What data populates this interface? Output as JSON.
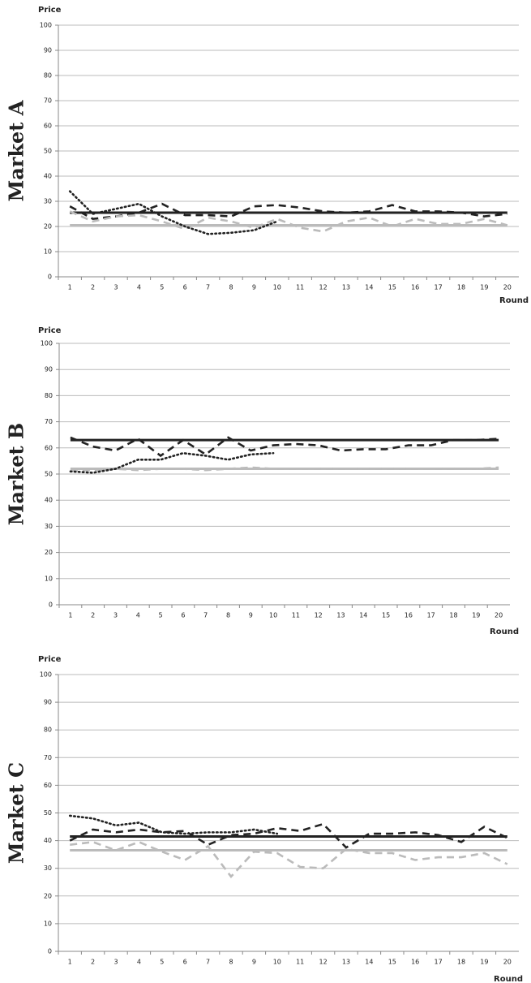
{
  "chart_data": [
    {
      "type": "line",
      "title": "Market A",
      "y_label": "Price",
      "x_label": "Round",
      "categories": [
        "1",
        "2",
        "3",
        "4",
        "5",
        "6",
        "7",
        "8",
        "9",
        "10",
        "11",
        "12",
        "13",
        "14",
        "15",
        "16",
        "17",
        "18",
        "19",
        "20"
      ],
      "ylim": [
        0,
        100
      ],
      "yticks": [
        0,
        10,
        20,
        30,
        40,
        50,
        60,
        70,
        80,
        90,
        100
      ],
      "grid": true,
      "series": [
        {
          "color": "#222222",
          "style": "solid",
          "values": [
            25.5,
            25.5,
            25.5,
            25.5,
            25.5,
            25.5,
            25.5,
            25.5,
            25.5,
            25.5,
            25.5,
            25.5,
            25.5,
            25.5,
            25.5,
            25.5,
            25.5,
            25.5,
            25.5,
            25.5
          ]
        },
        {
          "color": "#bbbbbb",
          "style": "solid",
          "values": [
            20.5,
            20.5,
            20.5,
            20.5,
            20.5,
            20.5,
            20.5,
            20.5,
            20.5,
            20.5,
            20.5,
            20.5,
            20.5,
            20.5,
            20.5,
            20.5,
            20.5,
            20.5,
            20.5,
            20.5
          ]
        },
        {
          "color": "#222222",
          "style": "dashed",
          "values": [
            28,
            23,
            24,
            25.5,
            29,
            24.5,
            24.5,
            24,
            28,
            28.5,
            27.5,
            26,
            25.5,
            26,
            28.5,
            26,
            26,
            25.5,
            24,
            25
          ]
        },
        {
          "color": "#bbbbbb",
          "style": "dashed",
          "values": [
            26,
            22,
            24,
            24.5,
            22,
            19,
            23.5,
            22,
            19.5,
            23,
            19.5,
            18,
            22,
            23.5,
            20,
            23,
            21,
            21,
            23,
            20.5
          ]
        },
        {
          "color": "#222222",
          "style": "dotted",
          "values": [
            34,
            25,
            27,
            29,
            24,
            20,
            17,
            17.5,
            18.5,
            22,
            null,
            null,
            null,
            null,
            null,
            null,
            null,
            null,
            null,
            null
          ]
        }
      ]
    },
    {
      "type": "line",
      "title": "Market B",
      "y_label": "Price",
      "x_label": "Round",
      "categories": [
        "1",
        "2",
        "3",
        "4",
        "5",
        "6",
        "7",
        "8",
        "9",
        "10",
        "11",
        "12",
        "13",
        "14",
        "15",
        "16",
        "17",
        "18",
        "19",
        "20"
      ],
      "ylim": [
        0,
        100
      ],
      "yticks": [
        0,
        10,
        20,
        30,
        40,
        50,
        60,
        70,
        80,
        90,
        100
      ],
      "grid": true,
      "series": [
        {
          "color": "#222222",
          "style": "solid",
          "values": [
            63,
            63,
            63,
            63,
            63,
            63,
            63,
            63,
            63,
            63,
            63,
            63,
            63,
            63,
            63,
            63,
            63,
            63,
            63,
            63
          ]
        },
        {
          "color": "#bbbbbb",
          "style": "solid",
          "values": [
            52,
            52,
            52,
            52,
            52,
            52,
            52,
            52,
            52,
            52,
            52,
            52,
            52,
            52,
            52,
            52,
            52,
            52,
            52,
            52
          ]
        },
        {
          "color": "#222222",
          "style": "dashed",
          "values": [
            64,
            60.5,
            59,
            63.5,
            57,
            63,
            57.5,
            64,
            59,
            61,
            61.5,
            61,
            59,
            59.5,
            59.5,
            61,
            61,
            63,
            63,
            63.5
          ]
        },
        {
          "color": "#bbbbbb",
          "style": "dashed",
          "values": [
            51.5,
            51.5,
            52,
            51.5,
            52,
            52,
            51.5,
            52,
            52.5,
            52,
            52,
            52,
            52,
            52,
            52,
            52,
            52,
            52,
            52,
            52.5
          ]
        },
        {
          "color": "#222222",
          "style": "dotted",
          "values": [
            51,
            50.5,
            52,
            55.5,
            55.5,
            58,
            57,
            55.5,
            57.5,
            58,
            null,
            null,
            null,
            null,
            null,
            null,
            null,
            null,
            null,
            null
          ]
        }
      ]
    },
    {
      "type": "line",
      "title": "Market C",
      "y_label": "Price",
      "x_label": "Round",
      "categories": [
        "1",
        "2",
        "3",
        "4",
        "5",
        "6",
        "7",
        "8",
        "9",
        "10",
        "11",
        "12",
        "13",
        "14",
        "15",
        "16",
        "17",
        "18",
        "19",
        "20"
      ],
      "ylim": [
        0,
        100
      ],
      "yticks": [
        0,
        10,
        20,
        30,
        40,
        50,
        60,
        70,
        80,
        90,
        100
      ],
      "grid": true,
      "series": [
        {
          "color": "#222222",
          "style": "solid",
          "values": [
            41.5,
            41.5,
            41.5,
            41.5,
            41.5,
            41.5,
            41.5,
            41.5,
            41.5,
            41.5,
            41.5,
            41.5,
            41.5,
            41.5,
            41.5,
            41.5,
            41.5,
            41.5,
            41.5,
            41.5
          ]
        },
        {
          "color": "#bbbbbb",
          "style": "solid",
          "values": [
            36.5,
            36.5,
            36.5,
            36.5,
            36.5,
            36.5,
            36.5,
            36.5,
            36.5,
            36.5,
            36.5,
            36.5,
            36.5,
            36.5,
            36.5,
            36.5,
            36.5,
            36.5,
            36.5,
            36.5
          ]
        },
        {
          "color": "#222222",
          "style": "dashed",
          "values": [
            40,
            44,
            43,
            44,
            43,
            43.5,
            38.5,
            42,
            42.5,
            44.5,
            43.5,
            46,
            37.5,
            42.5,
            42.5,
            43,
            42,
            39.5,
            45,
            41
          ]
        },
        {
          "color": "#bbbbbb",
          "style": "dashed",
          "values": [
            38.5,
            39.5,
            36.5,
            39.5,
            36,
            33,
            38,
            27,
            36,
            35.5,
            30.5,
            30,
            37,
            35.5,
            35.5,
            33,
            34,
            34,
            35.5,
            31.5
          ]
        },
        {
          "color": "#222222",
          "style": "dotted",
          "values": [
            49,
            48,
            45.5,
            46.5,
            43,
            42.5,
            43,
            43,
            44,
            42.5,
            null,
            null,
            null,
            null,
            null,
            null,
            null,
            null,
            null,
            null
          ]
        }
      ]
    }
  ]
}
